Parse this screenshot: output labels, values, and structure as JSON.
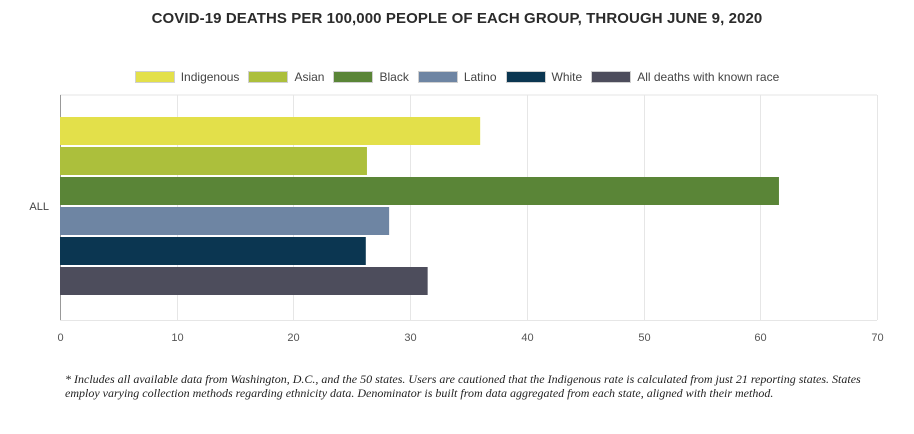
{
  "chart_data": {
    "type": "bar",
    "orientation": "horizontal",
    "title": "COVID-19 DEATHS PER 100,000 PEOPLE OF EACH GROUP, THROUGH JUNE 9, 2020",
    "categories": [
      "ALL"
    ],
    "series": [
      {
        "name": "Indigenous",
        "values": [
          36.0
        ],
        "color": "#e3e04a"
      },
      {
        "name": "Asian",
        "values": [
          26.3
        ],
        "color": "#acbf3c"
      },
      {
        "name": "Black",
        "values": [
          61.6
        ],
        "color": "#5a8537"
      },
      {
        "name": "Latino",
        "values": [
          28.2
        ],
        "color": "#6e85a3"
      },
      {
        "name": "White",
        "values": [
          26.2
        ],
        "color": "#0b3651"
      },
      {
        "name": "All deaths with known race",
        "values": [
          31.5
        ],
        "color": "#4d4d5c"
      }
    ],
    "xlim": [
      0,
      70
    ],
    "xticks": [
      "0",
      "10",
      "20",
      "30",
      "40",
      "50",
      "60",
      "70"
    ],
    "xlabel": "",
    "ylabel": "",
    "grid": true,
    "legend": "top-center"
  },
  "footnote": "* Includes all available data from Washington, D.C., and the 50 states. Users are cautioned that the Indigenous rate is calculated from just 21 reporting states. States employ varying collection methods regarding ethnicity data. Denominator is built from data aggregated from each state, aligned with their method."
}
